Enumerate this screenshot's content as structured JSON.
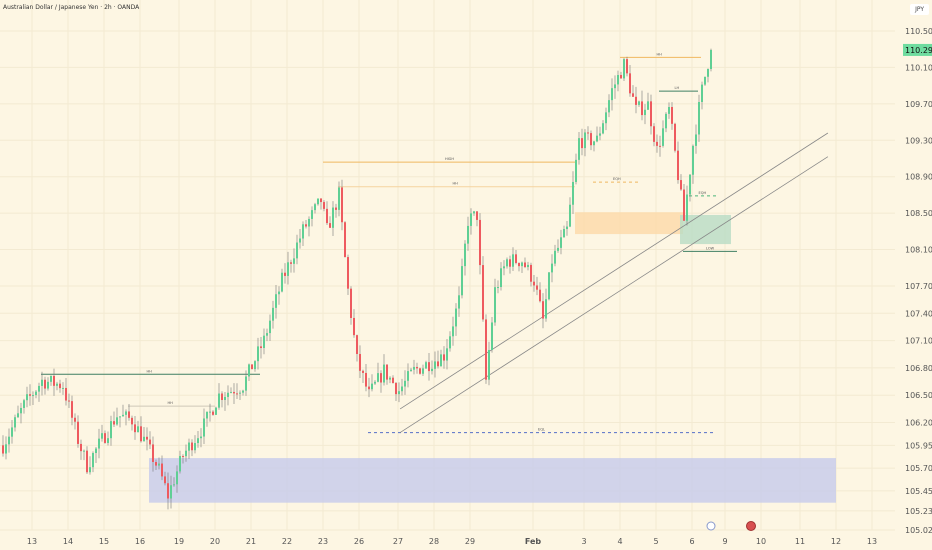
{
  "header": {
    "title": "Australian Dollar / Japanese Yen · 2h · OANDA",
    "currency": "JPY"
  },
  "chart_data": {
    "type": "candlestick",
    "title": "Australian Dollar / Japanese Yen · 2h · OANDA",
    "ylim": [
      105.02,
      110.5
    ],
    "y_ticks": [
      "110.500",
      "110.100",
      "109.700",
      "109.300",
      "108.900",
      "108.500",
      "108.100",
      "107.700",
      "107.400",
      "107.100",
      "106.800",
      "106.500",
      "106.200",
      "105.950",
      "105.700",
      "105.450",
      "105.230",
      "105.020"
    ],
    "x_ticks": [
      {
        "label": "13",
        "i": 10
      },
      {
        "label": "14",
        "i": 22
      },
      {
        "label": "15",
        "i": 34
      },
      {
        "label": "16",
        "i": 46
      },
      {
        "label": "19",
        "i": 59
      },
      {
        "label": "20",
        "i": 71
      },
      {
        "label": "21",
        "i": 83
      },
      {
        "label": "22",
        "i": 95
      },
      {
        "label": "23",
        "i": 107
      },
      {
        "label": "26",
        "i": 119
      },
      {
        "label": "27",
        "i": 132
      },
      {
        "label": "28",
        "i": 144
      },
      {
        "label": "29",
        "i": 156
      },
      {
        "label": "Feb",
        "i": 177
      },
      {
        "label": "3",
        "i": 194
      },
      {
        "label": "4",
        "i": 206
      },
      {
        "label": "5",
        "i": 218
      },
      {
        "label": "6",
        "i": 230
      },
      {
        "label": "9",
        "i": 241
      },
      {
        "label": "10",
        "i": 253
      },
      {
        "label": "11",
        "i": 266
      },
      {
        "label": "12",
        "i": 278
      },
      {
        "label": "13",
        "i": 290
      }
    ],
    "last_price": "110.292",
    "price_path": [
      [
        0,
        105.95
      ],
      [
        7,
        106.39
      ],
      [
        13,
        106.66
      ],
      [
        20,
        106.61
      ],
      [
        25,
        106.01
      ],
      [
        28,
        105.73
      ],
      [
        33,
        106.01
      ],
      [
        38,
        106.28
      ],
      [
        43,
        106.23
      ],
      [
        47,
        106.01
      ],
      [
        52,
        105.68
      ],
      [
        55,
        105.4
      ],
      [
        60,
        105.84
      ],
      [
        67,
        106.17
      ],
      [
        72,
        106.5
      ],
      [
        80,
        106.61
      ],
      [
        87,
        107.1
      ],
      [
        93,
        107.76
      ],
      [
        100,
        108.31
      ],
      [
        106,
        108.64
      ],
      [
        108,
        108.31
      ],
      [
        112,
        108.7
      ],
      [
        115,
        107.65
      ],
      [
        118,
        106.88
      ],
      [
        122,
        106.5
      ],
      [
        127,
        106.77
      ],
      [
        132,
        106.55
      ],
      [
        137,
        106.77
      ],
      [
        147,
        106.94
      ],
      [
        152,
        107.54
      ],
      [
        155,
        108.42
      ],
      [
        158,
        108.48
      ],
      [
        161,
        106.66
      ],
      [
        164,
        107.65
      ],
      [
        168,
        107.98
      ],
      [
        173,
        107.98
      ],
      [
        177,
        107.76
      ],
      [
        180,
        107.32
      ],
      [
        183,
        107.98
      ],
      [
        188,
        108.31
      ],
      [
        192,
        109.3
      ],
      [
        198,
        109.3
      ],
      [
        203,
        109.85
      ],
      [
        207,
        110.13
      ],
      [
        211,
        109.63
      ],
      [
        215,
        109.69
      ],
      [
        218,
        109.19
      ],
      [
        222,
        109.63
      ],
      [
        225,
        108.92
      ],
      [
        227,
        108.42
      ],
      [
        230,
        109.25
      ],
      [
        233,
        109.85
      ],
      [
        236,
        110.31
      ]
    ],
    "zones": [
      {
        "name": "demand-zone-blue",
        "from": 49,
        "to": 278,
        "top": 105.81,
        "bottom": 105.32,
        "color": "#c5cbeb"
      },
      {
        "name": "order-block-orange",
        "from": 191,
        "to": 227,
        "top": 108.51,
        "bottom": 108.27,
        "color": "#fcd9a8"
      },
      {
        "name": "zone-green",
        "from": 226,
        "to": 243,
        "top": 108.48,
        "bottom": 108.16,
        "color": "#b8dcc4"
      }
    ],
    "levels": [
      {
        "price": 106.73,
        "from": 13,
        "to": 86,
        "color": "#3f7f63",
        "dash": false,
        "label": "HH"
      },
      {
        "price": 106.38,
        "from": 42,
        "to": 71,
        "color": "#cfc8b8",
        "dash": false,
        "label": "HH"
      },
      {
        "price": 109.06,
        "from": 107,
        "to": 191,
        "color": "#f0b860",
        "dash": false,
        "label": "HIGH"
      },
      {
        "price": 108.79,
        "from": 112,
        "to": 191,
        "color": "#f5d3a0",
        "dash": false,
        "label": "HH"
      },
      {
        "price": 110.21,
        "from": 206,
        "to": 233,
        "color": "#f0b860",
        "dash": false,
        "label": "HH"
      },
      {
        "price": 106.09,
        "from": 122,
        "to": 238,
        "color": "#5570c8",
        "dash": true,
        "label": "EQL"
      },
      {
        "price": 108.84,
        "from": 197,
        "to": 213,
        "color": "#f0b860",
        "dash": true,
        "label": "EQH"
      },
      {
        "price": 108.69,
        "from": 229,
        "to": 238,
        "color": "#4cb57a",
        "dash": true,
        "label": "EQH"
      },
      {
        "price": 108.08,
        "from": 227,
        "to": 245,
        "color": "#3f7f63",
        "dash": false,
        "label": "LOW"
      },
      {
        "price": 109.84,
        "from": 219,
        "to": 232,
        "color": "#3f7f63",
        "dash": false,
        "label": "LH"
      }
    ],
    "trendlines": [
      {
        "from": [
          132.7,
          106.35
        ],
        "to": [
          275.3,
          109.38
        ]
      },
      {
        "from": [
          132.7,
          106.09
        ],
        "to": [
          275.3,
          109.12
        ]
      }
    ],
    "colors": {
      "up": "#5fcf94",
      "down": "#ee5a5f",
      "wick": "#777",
      "grid": "#f3ead2",
      "bg": "#fdf6e3"
    }
  }
}
